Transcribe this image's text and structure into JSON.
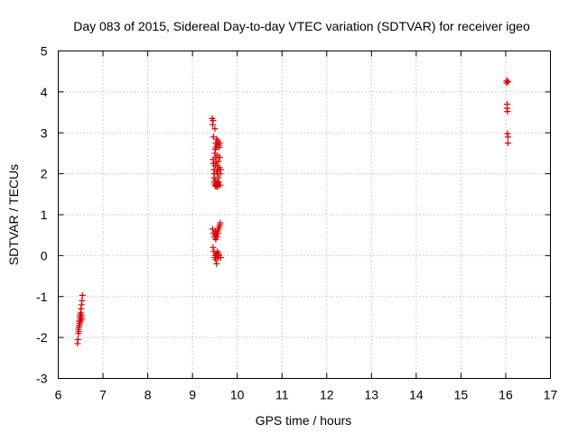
{
  "chart_data": {
    "type": "scatter",
    "title": "Day 083 of 2015, Sidereal Day-to-day VTEC variation (SDTVAR) for receiver igeo",
    "xlabel": "GPS time / hours",
    "ylabel": "SDTVAR / TECUs",
    "xlim": [
      6,
      17
    ],
    "ylim": [
      -3,
      5
    ],
    "xticks": [
      "6",
      "7",
      "8",
      "9",
      "10",
      "11",
      "12",
      "13",
      "14",
      "15",
      "16",
      "17"
    ],
    "yticks": [
      "-3",
      "-2",
      "-1",
      "0",
      "1",
      "2",
      "3",
      "4",
      "5"
    ],
    "grid": true,
    "marker": "+",
    "color": "#e00000",
    "series": [
      {
        "x": [
          6.43,
          6.44,
          6.45,
          6.45,
          6.46,
          6.46,
          6.47,
          6.47,
          6.48,
          6.48,
          6.49,
          6.49,
          6.5,
          6.5,
          6.51,
          6.51,
          6.52,
          6.52,
          6.53,
          6.53,
          6.54
        ],
        "y": [
          -2.15,
          -2.05,
          -1.9,
          -1.8,
          -1.75,
          -1.85,
          -1.7,
          -1.6,
          -1.65,
          -1.5,
          -1.55,
          -1.45,
          -1.6,
          -1.4,
          -1.3,
          -1.5,
          -1.2,
          -1.45,
          -1.1,
          -1.55,
          -0.97
        ]
      },
      {
        "x": [
          9.44,
          9.45,
          9.46,
          9.46,
          9.47,
          9.47,
          9.48,
          9.48,
          9.49,
          9.49,
          9.5,
          9.5,
          9.5,
          9.51,
          9.51,
          9.51,
          9.52,
          9.52,
          9.52,
          9.53,
          9.53,
          9.53,
          9.54,
          9.54,
          9.54,
          9.55,
          9.55,
          9.55,
          9.56,
          9.56,
          9.56,
          9.57,
          9.57,
          9.57,
          9.58,
          9.58,
          9.59,
          9.59,
          9.6,
          9.6,
          9.61,
          9.61,
          9.62,
          9.62,
          9.63
        ],
        "y": [
          3.35,
          3.2,
          3.3,
          2.35,
          2.25,
          2.9,
          2.1,
          1.9,
          2.0,
          1.8,
          1.75,
          2.5,
          3.1,
          2.6,
          1.7,
          2.2,
          2.75,
          1.85,
          2.4,
          2.3,
          1.72,
          2.65,
          2.05,
          2.85,
          1.7,
          2.2,
          2.7,
          1.78,
          2.0,
          1.68,
          2.45,
          2.8,
          2.1,
          1.75,
          2.3,
          1.9,
          2.7,
          1.8,
          2.15,
          2.65,
          2.4,
          2.75,
          1.72,
          2.0,
          2.1
        ]
      },
      {
        "x": [
          9.45,
          9.46,
          9.47,
          9.48,
          9.49,
          9.5,
          9.5,
          9.51,
          9.51,
          9.52,
          9.52,
          9.53,
          9.53,
          9.54,
          9.54,
          9.55,
          9.55,
          9.56,
          9.56,
          9.57,
          9.57,
          9.58,
          9.58,
          9.59,
          9.6,
          9.61,
          9.62,
          9.63
        ],
        "y": [
          0.65,
          0.2,
          0.55,
          0.1,
          0.45,
          -0.05,
          0.5,
          0.0,
          0.6,
          -0.1,
          0.4,
          0.05,
          0.55,
          -0.2,
          0.5,
          0.0,
          0.45,
          0.1,
          0.6,
          -0.05,
          0.55,
          0.05,
          0.65,
          0.0,
          0.7,
          0.75,
          0.8,
          -0.05
        ]
      },
      {
        "x": [
          16.02,
          16.02,
          16.03,
          16.03,
          16.04,
          16.04,
          16.05,
          16.05,
          16.05
        ],
        "y": [
          4.28,
          4.22,
          3.7,
          3.6,
          3.52,
          2.98,
          2.9,
          2.75,
          4.25
        ]
      }
    ]
  }
}
